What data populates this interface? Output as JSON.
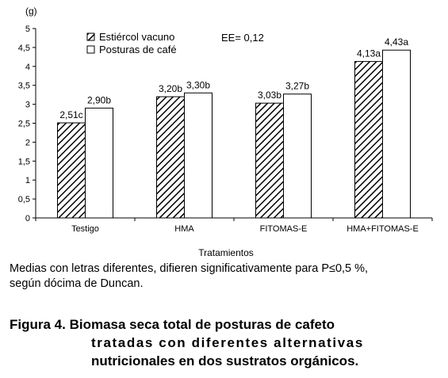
{
  "chart_data": {
    "type": "bar",
    "unit_label": "(g)",
    "xlabel": "Tratamientos",
    "ylabel": "",
    "ylim": [
      0,
      5
    ],
    "yticks": [
      "0",
      "0,5",
      "1",
      "1,5",
      "2",
      "2,5",
      "3",
      "3,5",
      "4",
      "4,5",
      "5"
    ],
    "grid": false,
    "legend_position": "top-left",
    "annotation": "EE= 0,12",
    "categories": [
      "Testigo",
      "HMA",
      "FITOMAS-E",
      "HMA+FITOMAS-E"
    ],
    "series": [
      {
        "name": "Estiércol vacuno",
        "fill": "hatched",
        "values": [
          2.51,
          3.2,
          3.03,
          4.13
        ],
        "labels": [
          "2,51c",
          "3,20b",
          "3,03b",
          "4,13a"
        ]
      },
      {
        "name": "Posturas de café",
        "fill": "white",
        "values": [
          2.9,
          3.3,
          3.27,
          4.43
        ],
        "labels": [
          "2,90b",
          "3,30b",
          "3,27b",
          "4,43a"
        ]
      }
    ]
  },
  "note": {
    "line1": "Medias con letras diferentes, difieren significativamente para P≤0,5 %,",
    "line2": "según dócima de Duncan."
  },
  "caption": {
    "line1": "Figura 4. Biomasa seca total de posturas de cafeto",
    "line2": "tratadas con diferentes alternativas",
    "line3": "nutricionales en dos sustratos orgánicos."
  },
  "colors": {
    "bar_stroke": "#000000",
    "bar_white": "#ffffff",
    "hatch": "#000000"
  }
}
